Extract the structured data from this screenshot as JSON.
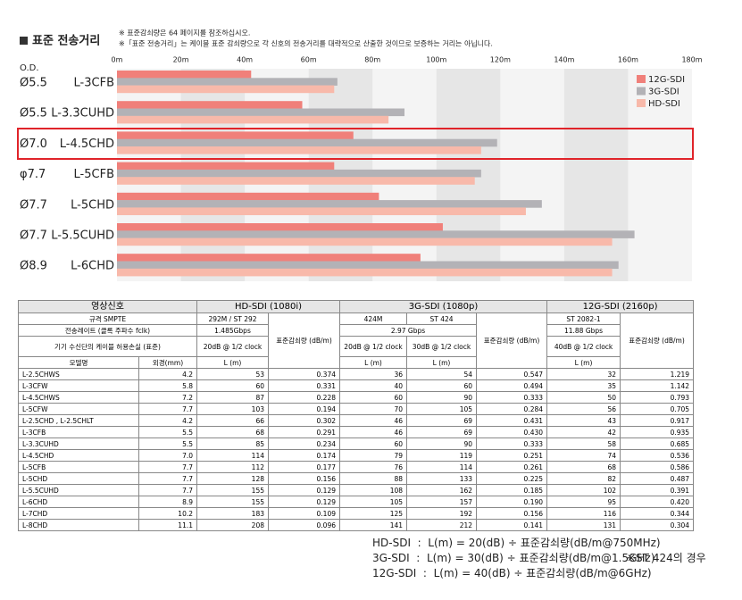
{
  "title": "표준 전송거리",
  "notes": [
    "※ 표준감쇠량은 64 페이지를 참조하십시오.",
    "※「표준 전송거리」는 케이블 표준 감쇠량으로 각 신호의 전송거리를 대략적으로 산출한 것이므로 보증하는 거리는 아닙니다."
  ],
  "chart_data": {
    "type": "hbar",
    "axis_label": "O.D.",
    "categories": [
      "L-3CFB",
      "L-3.3CUHD",
      "L-4.5CHD",
      "L-5CFB",
      "L-5CHD",
      "L-5.5CUHD",
      "L-6CHD"
    ],
    "diameters": [
      "Ø5.5",
      "Ø5.5",
      "Ø7.0",
      "φ7.7",
      "Ø7.7",
      "Ø7.7",
      "Ø8.9"
    ],
    "series": [
      {
        "name": "12G-SDI",
        "color": "#f0807a",
        "values": [
          42,
          58,
          74,
          68,
          82,
          102,
          95
        ]
      },
      {
        "name": "3G-SDI",
        "color": "#b3b2b6",
        "values": [
          69,
          90,
          119,
          114,
          133,
          162,
          157
        ]
      },
      {
        "name": "HD-SDI",
        "color": "#f8b9aa",
        "values": [
          68,
          85,
          114,
          112,
          128,
          155,
          155
        ]
      }
    ],
    "xlim": [
      0,
      180
    ],
    "xticks": [
      {
        "value": 0,
        "label": "0m"
      },
      {
        "value": 20,
        "label": "20m"
      },
      {
        "value": 40,
        "label": "40m"
      },
      {
        "value": 60,
        "label": "60m"
      },
      {
        "value": 80,
        "label": "80m"
      },
      {
        "value": 100,
        "label": "100m"
      },
      {
        "value": 120,
        "label": "120m"
      },
      {
        "value": 140,
        "label": "140m"
      },
      {
        "value": 160,
        "label": "160m"
      },
      {
        "value": 180,
        "label": "180m"
      }
    ],
    "legend": "upper right"
  },
  "table": {
    "header": [
      [
        "영상신호",
        "HD-SDI (1080i)",
        "3G-SDI (1080p)",
        "12G-SDI (2160p)"
      ],
      [
        "규격 SMPTE",
        "292M  /  ST 292",
        "표준감쇠량 (dB/m)",
        "424M",
        "ST 424",
        "표준감쇠량 (dB/m)",
        "ST 2082-1",
        "표준감쇠량 (dB/m)"
      ],
      [
        "전송레이트 (클록 주파수 fclk)",
        "1.485Gbps",
        "2.97 Gbps",
        "11.88 Gbps"
      ],
      [
        "기기 수신단의 케이블 허용손실 (표준)",
        "20dB @ 1/2 clock",
        "20dB @ 1/2 clock",
        "30dB @ 1/2 clock",
        "40dB @ 1/2 clock"
      ],
      [
        "모델명",
        "외경(mm)",
        "L (m)",
        "L (m)",
        "L (m)",
        "L (m)"
      ]
    ],
    "rows": [
      [
        "L-2.5CHWS",
        "4.2",
        "53",
        "0.374",
        "36",
        "54",
        "0.547",
        "32",
        "1.219"
      ],
      [
        "L-3CFW",
        "5.8",
        "60",
        "0.331",
        "40",
        "60",
        "0.494",
        "35",
        "1.142"
      ],
      [
        "L-4.5CHWS",
        "7.2",
        "87",
        "0.228",
        "60",
        "90",
        "0.333",
        "50",
        "0.793"
      ],
      [
        "L-5CFW",
        "7.7",
        "103",
        "0.194",
        "70",
        "105",
        "0.284",
        "56",
        "0.705"
      ],
      [
        "L-2.5CHD , L-2.5CHLT",
        "4.2",
        "66",
        "0.302",
        "46",
        "69",
        "0.431",
        "43",
        "0.917"
      ],
      [
        "L-3CFB",
        "5.5",
        "68",
        "0.291",
        "46",
        "69",
        "0.430",
        "42",
        "0.935"
      ],
      [
        "L-3.3CUHD",
        "5.5",
        "85",
        "0.234",
        "60",
        "90",
        "0.333",
        "58",
        "0.685"
      ],
      [
        "L-4.5CHD",
        "7.0",
        "114",
        "0.174",
        "79",
        "119",
        "0.251",
        "74",
        "0.536"
      ],
      [
        "L-5CFB",
        "7.7",
        "112",
        "0.177",
        "76",
        "114",
        "0.261",
        "68",
        "0.586"
      ],
      [
        "L-5CHD",
        "7.7",
        "128",
        "0.156",
        "88",
        "133",
        "0.225",
        "82",
        "0.487"
      ],
      [
        "L-5.5CUHD",
        "7.7",
        "155",
        "0.129",
        "108",
        "162",
        "0.185",
        "102",
        "0.391"
      ],
      [
        "L-6CHD",
        "8.9",
        "155",
        "0.129",
        "105",
        "157",
        "0.190",
        "95",
        "0.420"
      ],
      [
        "L-7CHD",
        "10.2",
        "183",
        "0.109",
        "125",
        "192",
        "0.156",
        "116",
        "0.344"
      ],
      [
        "L-8CHD",
        "11.1",
        "208",
        "0.096",
        "141",
        "212",
        "0.141",
        "131",
        "0.304"
      ]
    ]
  },
  "formulas": [
    "HD-SDI  :  L(m) = 20(dB) ÷ 표준감쇠량(dB/m@750MHz)",
    "3G-SDI  :  L(m) = 30(dB) ÷ 표준감쇠량(dB/m@1.5GHz)",
    "12G-SDI  :  L(m) = 40(dB) ÷ 표준감쇠량(dB/m@6GHz)"
  ],
  "formula_note": "※ST 424의 경우"
}
